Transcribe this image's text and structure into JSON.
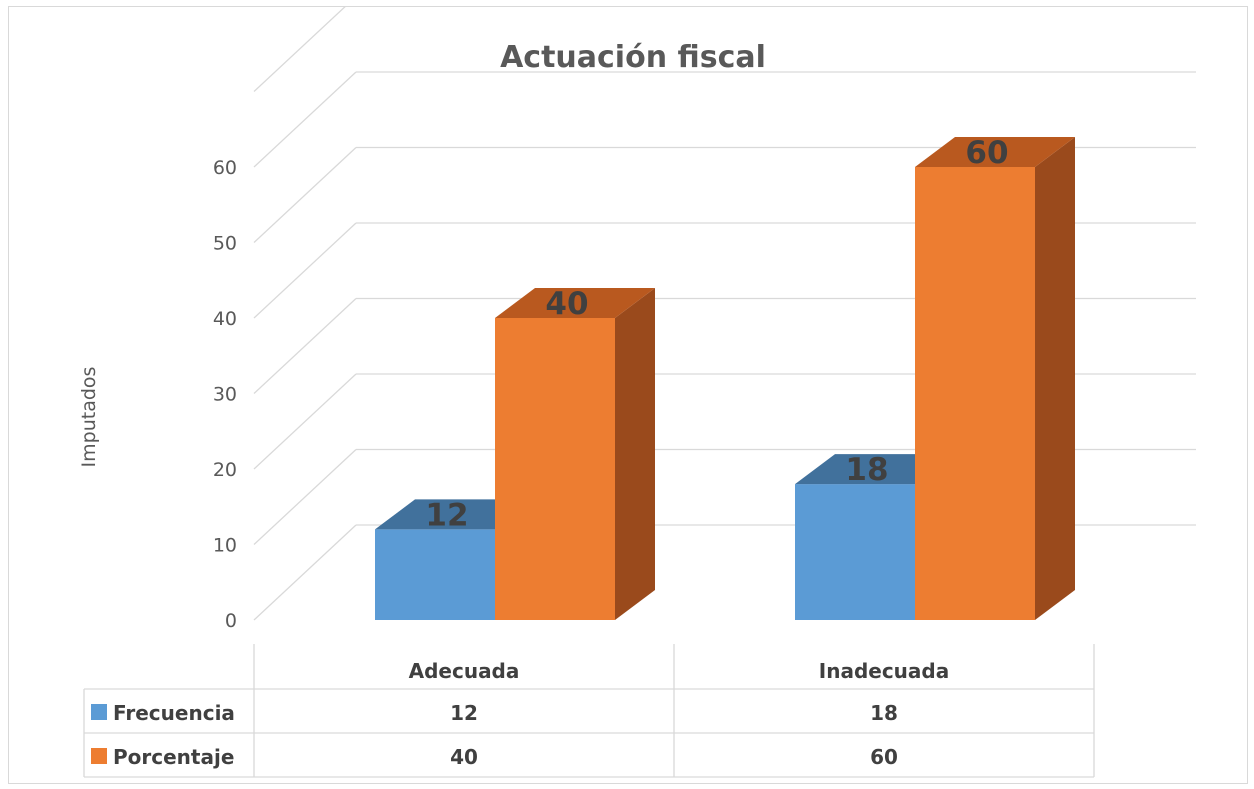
{
  "chart_data": {
    "type": "bar",
    "title": "Actuación fiscal",
    "ylabel": "Imputados",
    "xlabel": "",
    "categories": [
      "Adecuada",
      "Inadecuada"
    ],
    "series": [
      {
        "name": "Frecuencia",
        "values": [
          12,
          18
        ],
        "color": "#5b9bd5",
        "top_color": "#41719c",
        "side_color": "#41719c"
      },
      {
        "name": "Porcentaje",
        "values": [
          40,
          60
        ],
        "color": "#ed7d31",
        "top_color": "#b9591f",
        "side_color": "#9a4a1c"
      }
    ],
    "ylim": [
      0,
      60
    ],
    "yticks": [
      0,
      10,
      20,
      30,
      40,
      50,
      60
    ],
    "grid": true,
    "projection": "3d",
    "legend": "data-table-below",
    "data_table": true
  }
}
